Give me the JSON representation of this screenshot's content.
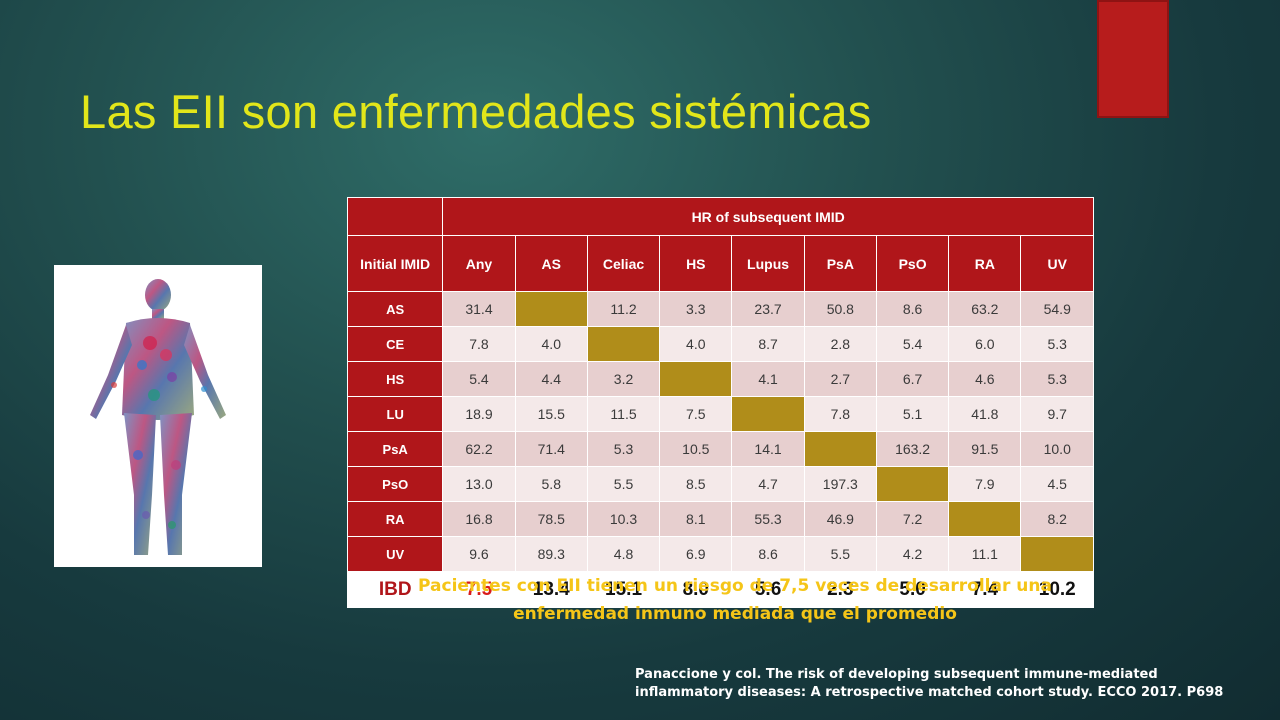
{
  "slide": {
    "title": "Las EII son enfermedades sistémicas",
    "image_label": "human-body-illustration"
  },
  "table": {
    "group_header": "HR of subsequent IMID",
    "row_header_title": "Initial IMID",
    "columns": [
      "Any",
      "AS",
      "Celiac",
      "HS",
      "Lupus",
      "PsA",
      "PsO",
      "RA",
      "UV"
    ],
    "rows": [
      {
        "label": "AS",
        "values": [
          "31.4",
          "",
          "11.2",
          "3.3",
          "23.7",
          "50.8",
          "8.6",
          "63.2",
          "54.9"
        ],
        "highlight_index": 1
      },
      {
        "label": "CE",
        "values": [
          "7.8",
          "4.0",
          "",
          "4.0",
          "8.7",
          "2.8",
          "5.4",
          "6.0",
          "5.3"
        ],
        "highlight_index": 2
      },
      {
        "label": "HS",
        "values": [
          "5.4",
          "4.4",
          "3.2",
          "",
          "4.1",
          "2.7",
          "6.7",
          "4.6",
          "5.3"
        ],
        "highlight_index": 3
      },
      {
        "label": "LU",
        "values": [
          "18.9",
          "15.5",
          "11.5",
          "7.5",
          "",
          "7.8",
          "5.1",
          "41.8",
          "9.7"
        ],
        "highlight_index": 4
      },
      {
        "label": "PsA",
        "values": [
          "62.2",
          "71.4",
          "5.3",
          "10.5",
          "14.1",
          "",
          "163.2",
          "91.5",
          "10.0"
        ],
        "highlight_index": 5
      },
      {
        "label": "PsO",
        "values": [
          "13.0",
          "5.8",
          "5.5",
          "8.5",
          "4.7",
          "197.3",
          "",
          "7.9",
          "4.5"
        ],
        "highlight_index": 6
      },
      {
        "label": "RA",
        "values": [
          "16.8",
          "78.5",
          "10.3",
          "8.1",
          "55.3",
          "46.9",
          "7.2",
          "",
          "8.2"
        ],
        "highlight_index": 7
      },
      {
        "label": "UV",
        "values": [
          "9.6",
          "89.3",
          "4.8",
          "6.9",
          "8.6",
          "5.5",
          "4.2",
          "11.1",
          ""
        ],
        "highlight_index": 8
      }
    ],
    "ibd_row": {
      "label": "IBD",
      "values": [
        "7.5",
        "13.4",
        "15.1",
        "8.0",
        "5.6",
        "2.3",
        "5.0",
        "7.4",
        "10.2"
      ]
    },
    "colors": {
      "header": "#b0161a",
      "highlight": "#b08d1a",
      "row_odd": "#e7cfcf",
      "row_even": "#f4e9e9",
      "ibd_first": "#d81b1b"
    }
  },
  "note": {
    "line1": "Pacientes con EII tienen un riesgo de 7,5 veces de desarrollar una",
    "line2": "enfermedad inmuno mediada que el promedio"
  },
  "citation": {
    "line1": "Panaccione y col. The risk of developing subsequent immune-mediated",
    "line2": "inflammatory diseases: A retrospective matched cohort study. ECCO 2017. P698"
  }
}
